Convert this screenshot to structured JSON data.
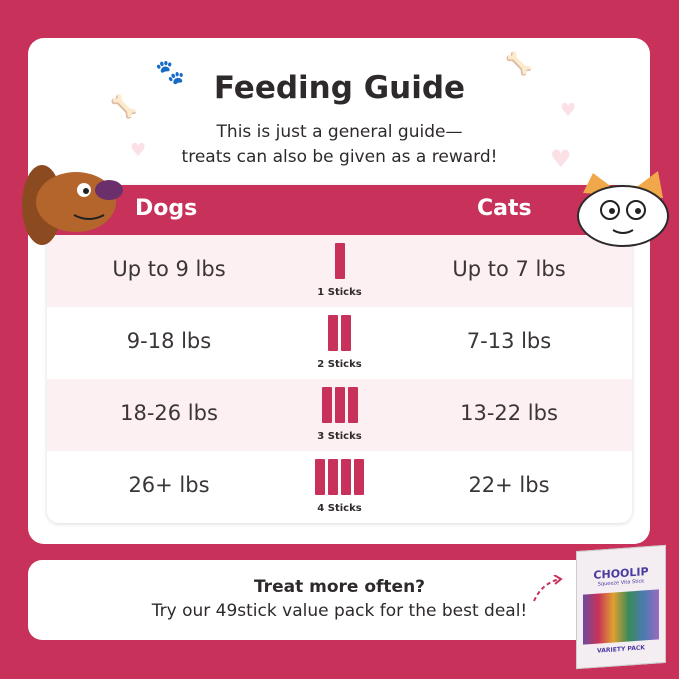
{
  "title": "Feeding Guide",
  "subtitle": [
    "This is just a general guide—",
    "treats can also be given as a reward!"
  ],
  "table": {
    "headers": {
      "dogs": "Dogs",
      "cats": "Cats"
    },
    "rows": [
      {
        "dogs": "Up to 9 lbs",
        "sticks": 1,
        "sticks_label": "1 Sticks",
        "cats": "Up to 7 lbs"
      },
      {
        "dogs": "9-18 lbs",
        "sticks": 2,
        "sticks_label": "2 Sticks",
        "cats": "7-13 lbs"
      },
      {
        "dogs": "18-26 lbs",
        "sticks": 3,
        "sticks_label": "3 Sticks",
        "cats": "13-22 lbs"
      },
      {
        "dogs": "26+ lbs",
        "sticks": 4,
        "sticks_label": "4 Sticks",
        "cats": "22+ lbs"
      }
    ]
  },
  "stick_brand": "CHOOLIP",
  "bottom": {
    "line1": "Treat more often?",
    "line2": "Try our 49stick value pack for the best deal!"
  },
  "product": {
    "brand": "CHOOLIP",
    "name": "Squeeze Vita Stick",
    "tag": "VARIETY PACK"
  },
  "colors": {
    "accent": "#c8325a",
    "row_pink": "#fdf0f2"
  }
}
